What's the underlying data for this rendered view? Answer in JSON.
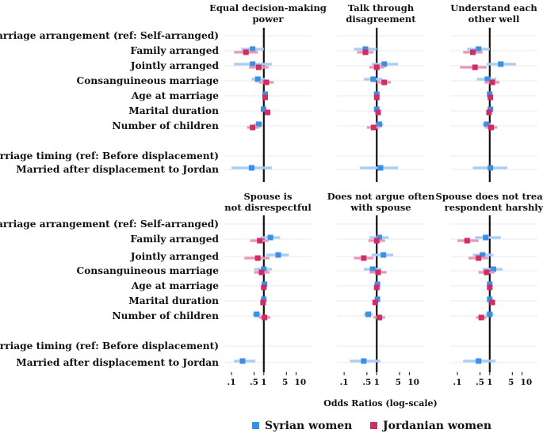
{
  "chart_data": {
    "type": "coefficient-plot",
    "x_axis_label": "Odds Ratios (log-scale)",
    "x_scale": "log",
    "x_ticks": [
      {
        "value": 0.1,
        "label": ".1"
      },
      {
        "value": 0.5,
        "label": ".5"
      },
      {
        "value": 1,
        "label": "1"
      },
      {
        "value": 5,
        "label": "5"
      },
      {
        "value": 10,
        "label": "10"
      }
    ],
    "xlim": [
      0.06,
      30
    ],
    "reference_line": 1,
    "row_labels": [
      "Marriage arrangement (ref: Self-arranged)",
      "Family arranged",
      "Jointly arranged",
      "Consanguineous marriage",
      "Age at marriage",
      "Marital duration",
      "Number of children",
      "",
      "Marriage timing (ref: Before displacement)",
      "Married after displacement to Jordan"
    ],
    "legend": [
      {
        "name": "Syrian women",
        "color": "#3b8fe6",
        "ci_color": "#a9cdf4"
      },
      {
        "name": "Jordanian women",
        "color": "#d02d66",
        "ci_color": "#e79ab7"
      }
    ],
    "panels": [
      {
        "title": [
          "Equal decision-making",
          "power"
        ],
        "syrian": [
          null,
          [
            0.45,
            0.2,
            1.0
          ],
          [
            0.45,
            0.12,
            1.8
          ],
          [
            0.65,
            0.42,
            1.1
          ],
          [
            1.1,
            0.95,
            1.3
          ],
          [
            0.98,
            0.88,
            1.1
          ],
          [
            0.7,
            0.5,
            0.95
          ],
          null,
          null,
          [
            0.42,
            0.1,
            1.8
          ]
        ],
        "jordanian": [
          null,
          [
            0.28,
            0.12,
            0.65
          ],
          [
            0.7,
            0.35,
            1.4
          ],
          [
            1.2,
            0.7,
            2.0
          ],
          [
            1.1,
            0.95,
            1.3
          ],
          [
            1.3,
            1.1,
            1.5
          ],
          [
            0.45,
            0.3,
            0.72
          ],
          null,
          null,
          null
        ]
      },
      {
        "title": [
          "Talk through",
          "disagreement"
        ],
        "syrian": [
          null,
          [
            0.45,
            0.2,
            1.0
          ],
          [
            1.7,
            0.7,
            4.5
          ],
          [
            0.78,
            0.4,
            1.5
          ],
          [
            1.0,
            0.9,
            1.1
          ],
          [
            1.0,
            0.9,
            1.1
          ],
          [
            1.2,
            0.9,
            1.6
          ],
          null,
          null,
          [
            1.3,
            0.3,
            4.5
          ]
        ],
        "jordanian": [
          null,
          [
            0.45,
            0.25,
            0.8
          ],
          [
            1.0,
            0.6,
            1.7
          ],
          [
            1.7,
            1.0,
            2.7
          ],
          [
            1.0,
            0.9,
            1.1
          ],
          [
            1.1,
            1.0,
            1.2
          ],
          [
            0.8,
            0.5,
            1.2
          ],
          null,
          null,
          null
        ]
      },
      {
        "title": [
          "Understand each",
          "other well"
        ],
        "syrian": [
          null,
          [
            0.45,
            0.2,
            1.0
          ],
          [
            2.2,
            0.8,
            6.5
          ],
          [
            0.85,
            0.4,
            1.6
          ],
          [
            1.0,
            0.9,
            1.1
          ],
          [
            1.05,
            0.95,
            1.2
          ],
          [
            0.8,
            0.6,
            1.1
          ],
          null,
          null,
          [
            1.05,
            0.3,
            3.5
          ]
        ],
        "jordanian": [
          null,
          [
            0.3,
            0.15,
            0.6
          ],
          [
            0.35,
            0.12,
            0.8
          ],
          [
            1.2,
            0.7,
            2.0
          ],
          [
            1.05,
            0.95,
            1.15
          ],
          [
            0.95,
            0.85,
            1.05
          ],
          [
            1.1,
            0.75,
            1.7
          ],
          null,
          null,
          null
        ]
      },
      {
        "title": [
          "Spouse is",
          "not disrespectful"
        ],
        "syrian": [
          null,
          [
            1.6,
            0.8,
            3.2
          ],
          [
            2.8,
            1.2,
            6.0
          ],
          [
            1.0,
            0.5,
            1.8
          ],
          [
            1.05,
            0.95,
            1.2
          ],
          [
            1.0,
            0.9,
            1.15
          ],
          [
            0.6,
            0.45,
            0.8
          ],
          null,
          null,
          [
            0.22,
            0.12,
            0.55
          ]
        ],
        "jordanian": [
          null,
          [
            0.75,
            0.38,
            1.4
          ],
          [
            0.65,
            0.25,
            1.5
          ],
          [
            0.85,
            0.5,
            1.5
          ],
          [
            1.0,
            0.9,
            1.1
          ],
          [
            0.95,
            0.85,
            1.05
          ],
          [
            1.05,
            0.7,
            1.6
          ],
          null,
          null,
          null
        ]
      },
      {
        "title": [
          "Does not argue often",
          "with spouse"
        ],
        "syrian": [
          null,
          [
            1.2,
            0.6,
            2.3
          ],
          [
            1.6,
            0.7,
            3.2
          ],
          [
            0.75,
            0.4,
            1.4
          ],
          [
            1.05,
            0.95,
            1.15
          ],
          [
            1.05,
            0.95,
            1.15
          ],
          [
            0.55,
            0.4,
            0.75
          ],
          null,
          null,
          [
            0.4,
            0.15,
            1.3
          ]
        ],
        "jordanian": [
          null,
          [
            1.0,
            0.55,
            1.8
          ],
          [
            0.4,
            0.2,
            0.8
          ],
          [
            1.1,
            0.6,
            2.0
          ],
          [
            1.0,
            0.9,
            1.1
          ],
          [
            0.9,
            0.8,
            1.0
          ],
          [
            1.2,
            0.8,
            1.8
          ],
          null,
          null,
          null
        ]
      },
      {
        "title": [
          "Spouse does not treats",
          "respondent harshly"
        ],
        "syrian": [
          null,
          [
            0.75,
            0.35,
            2.2
          ],
          [
            0.6,
            0.3,
            1.3
          ],
          [
            1.3,
            0.6,
            2.5
          ],
          [
            1.0,
            0.9,
            1.1
          ],
          [
            1.0,
            0.9,
            1.1
          ],
          [
            1.0,
            0.75,
            1.3
          ],
          null,
          null,
          [
            0.45,
            0.15,
            1.5
          ]
        ],
        "jordanian": [
          null,
          [
            0.2,
            0.1,
            0.45
          ],
          [
            0.45,
            0.22,
            0.9
          ],
          [
            0.8,
            0.45,
            1.4
          ],
          [
            1.0,
            0.9,
            1.1
          ],
          [
            1.2,
            1.05,
            1.35
          ],
          [
            0.55,
            0.38,
            0.8
          ],
          null,
          null,
          null
        ]
      }
    ]
  }
}
